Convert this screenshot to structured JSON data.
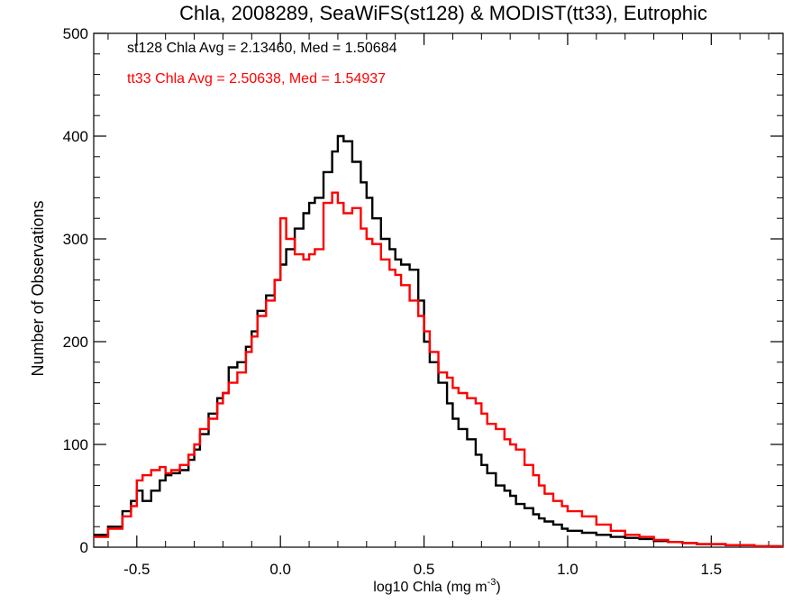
{
  "chart_data": {
    "type": "histogram",
    "title": "Chla, 2008289, SeaWiFS(st128) & MODIST(tt33), Eutrophic",
    "xlabel": "log10 Chla (mg m",
    "xlabel_sup": "-3",
    "xlabel_end": ")",
    "ylabel": "Number of Observations",
    "xlim": [
      -0.65,
      1.75
    ],
    "ylim": [
      0,
      500
    ],
    "xticks": [
      -0.5,
      0.0,
      0.5,
      1.0,
      1.5
    ],
    "xtick_labels": [
      "-0.5",
      "0.0",
      "0.5",
      "1.0",
      "1.5"
    ],
    "yticks": [
      0,
      100,
      200,
      300,
      400,
      500
    ],
    "ytick_labels": [
      "0",
      "100",
      "200",
      "300",
      "400",
      "500"
    ],
    "grid": false,
    "annotations": [
      {
        "text": "st128 Chla Avg = 2.13460, Med = 1.50684",
        "color": "#000000"
      },
      {
        "text": "tt33 Chla Avg = 2.50638, Med = 1.54937",
        "color": "#ff0000"
      }
    ],
    "series": [
      {
        "name": "st128",
        "color": "#000000",
        "points": [
          [
            -0.65,
            12
          ],
          [
            -0.6,
            20
          ],
          [
            -0.55,
            35
          ],
          [
            -0.52,
            45
          ],
          [
            -0.5,
            55
          ],
          [
            -0.48,
            45
          ],
          [
            -0.45,
            55
          ],
          [
            -0.42,
            65
          ],
          [
            -0.4,
            70
          ],
          [
            -0.38,
            72
          ],
          [
            -0.35,
            75
          ],
          [
            -0.32,
            85
          ],
          [
            -0.3,
            95
          ],
          [
            -0.28,
            110
          ],
          [
            -0.25,
            130
          ],
          [
            -0.22,
            145
          ],
          [
            -0.2,
            150
          ],
          [
            -0.18,
            175
          ],
          [
            -0.15,
            180
          ],
          [
            -0.12,
            195
          ],
          [
            -0.1,
            210
          ],
          [
            -0.08,
            230
          ],
          [
            -0.05,
            245
          ],
          [
            -0.02,
            260
          ],
          [
            0.0,
            275
          ],
          [
            0.02,
            290
          ],
          [
            0.05,
            310
          ],
          [
            0.08,
            325
          ],
          [
            0.1,
            335
          ],
          [
            0.12,
            340
          ],
          [
            0.15,
            365
          ],
          [
            0.18,
            385
          ],
          [
            0.2,
            400
          ],
          [
            0.22,
            395
          ],
          [
            0.25,
            375
          ],
          [
            0.28,
            355
          ],
          [
            0.3,
            340
          ],
          [
            0.32,
            320
          ],
          [
            0.35,
            300
          ],
          [
            0.38,
            290
          ],
          [
            0.4,
            280
          ],
          [
            0.42,
            275
          ],
          [
            0.45,
            270
          ],
          [
            0.48,
            240
          ],
          [
            0.5,
            200
          ],
          [
            0.52,
            180
          ],
          [
            0.55,
            160
          ],
          [
            0.58,
            140
          ],
          [
            0.6,
            125
          ],
          [
            0.62,
            115
          ],
          [
            0.65,
            105
          ],
          [
            0.68,
            90
          ],
          [
            0.7,
            80
          ],
          [
            0.72,
            72
          ],
          [
            0.75,
            60
          ],
          [
            0.78,
            55
          ],
          [
            0.8,
            50
          ],
          [
            0.82,
            42
          ],
          [
            0.85,
            38
          ],
          [
            0.88,
            32
          ],
          [
            0.9,
            28
          ],
          [
            0.92,
            25
          ],
          [
            0.95,
            22
          ],
          [
            0.98,
            18
          ],
          [
            1.0,
            16
          ],
          [
            1.05,
            14
          ],
          [
            1.1,
            12
          ],
          [
            1.15,
            10
          ],
          [
            1.2,
            9
          ],
          [
            1.25,
            8
          ],
          [
            1.3,
            6
          ],
          [
            1.35,
            5
          ],
          [
            1.4,
            4
          ],
          [
            1.45,
            3
          ],
          [
            1.5,
            3
          ],
          [
            1.55,
            2
          ],
          [
            1.6,
            2
          ],
          [
            1.65,
            1
          ],
          [
            1.7,
            1
          ],
          [
            1.75,
            1
          ]
        ]
      },
      {
        "name": "tt33",
        "color": "#ff0000",
        "points": [
          [
            -0.65,
            10
          ],
          [
            -0.6,
            18
          ],
          [
            -0.55,
            30
          ],
          [
            -0.52,
            40
          ],
          [
            -0.5,
            65
          ],
          [
            -0.48,
            70
          ],
          [
            -0.45,
            75
          ],
          [
            -0.42,
            78
          ],
          [
            -0.4,
            72
          ],
          [
            -0.38,
            75
          ],
          [
            -0.35,
            80
          ],
          [
            -0.32,
            90
          ],
          [
            -0.3,
            100
          ],
          [
            -0.28,
            115
          ],
          [
            -0.25,
            125
          ],
          [
            -0.22,
            140
          ],
          [
            -0.2,
            150
          ],
          [
            -0.18,
            160
          ],
          [
            -0.15,
            170
          ],
          [
            -0.12,
            190
          ],
          [
            -0.1,
            205
          ],
          [
            -0.08,
            225
          ],
          [
            -0.05,
            240
          ],
          [
            -0.02,
            260
          ],
          [
            0.0,
            320
          ],
          [
            0.02,
            300
          ],
          [
            0.05,
            285
          ],
          [
            0.08,
            280
          ],
          [
            0.1,
            285
          ],
          [
            0.12,
            290
          ],
          [
            0.15,
            335
          ],
          [
            0.18,
            345
          ],
          [
            0.2,
            335
          ],
          [
            0.22,
            325
          ],
          [
            0.25,
            330
          ],
          [
            0.28,
            310
          ],
          [
            0.3,
            300
          ],
          [
            0.32,
            295
          ],
          [
            0.35,
            280
          ],
          [
            0.38,
            270
          ],
          [
            0.4,
            265
          ],
          [
            0.42,
            255
          ],
          [
            0.45,
            240
          ],
          [
            0.48,
            225
          ],
          [
            0.5,
            210
          ],
          [
            0.52,
            190
          ],
          [
            0.55,
            170
          ],
          [
            0.58,
            165
          ],
          [
            0.6,
            155
          ],
          [
            0.62,
            150
          ],
          [
            0.65,
            145
          ],
          [
            0.68,
            140
          ],
          [
            0.7,
            130
          ],
          [
            0.72,
            120
          ],
          [
            0.75,
            115
          ],
          [
            0.78,
            105
          ],
          [
            0.8,
            100
          ],
          [
            0.82,
            95
          ],
          [
            0.85,
            80
          ],
          [
            0.88,
            70
          ],
          [
            0.9,
            60
          ],
          [
            0.92,
            52
          ],
          [
            0.95,
            45
          ],
          [
            0.98,
            40
          ],
          [
            1.0,
            35
          ],
          [
            1.05,
            30
          ],
          [
            1.1,
            22
          ],
          [
            1.15,
            16
          ],
          [
            1.2,
            12
          ],
          [
            1.25,
            10
          ],
          [
            1.3,
            7
          ],
          [
            1.35,
            5
          ],
          [
            1.4,
            4
          ],
          [
            1.45,
            3
          ],
          [
            1.5,
            3
          ],
          [
            1.55,
            2
          ],
          [
            1.6,
            2
          ],
          [
            1.65,
            1
          ],
          [
            1.7,
            1
          ],
          [
            1.75,
            1
          ]
        ]
      }
    ]
  }
}
